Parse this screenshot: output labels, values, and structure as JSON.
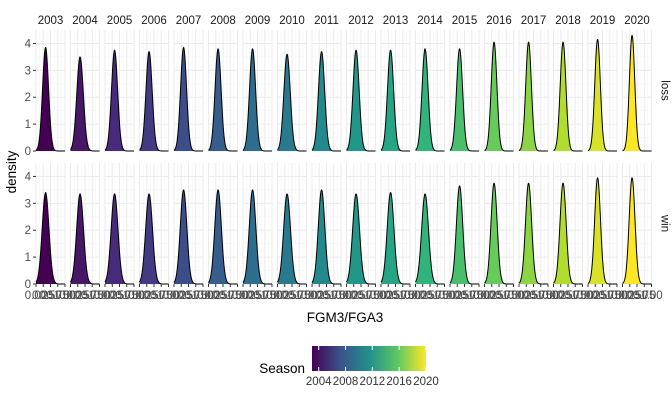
{
  "chart_data": {
    "type": "density",
    "facets": {
      "columns": [
        "2003",
        "2004",
        "2005",
        "2006",
        "2007",
        "2008",
        "2009",
        "2010",
        "2011",
        "2012",
        "2013",
        "2014",
        "2015",
        "2016",
        "2017",
        "2018",
        "2019",
        "2020"
      ],
      "rows": [
        "loss",
        "win"
      ]
    },
    "xlabel": "FGM3/FGA3",
    "ylabel": "density",
    "xlim": [
      0,
      1
    ],
    "ylim": [
      0,
      4.5
    ],
    "x_ticks": [
      0,
      0.25,
      0.5,
      0.75,
      1
    ],
    "x_tick_labels": [
      "0.00",
      "0.25",
      "0.50",
      "0.75",
      "1.00"
    ],
    "y_ticks": [
      0,
      1,
      2,
      3,
      4
    ],
    "y_tick_labels": [
      "0",
      "1",
      "2",
      "3",
      "4"
    ],
    "peak_x": 0.33,
    "peak_density": {
      "loss": [
        3.85,
        3.5,
        3.75,
        3.7,
        3.85,
        3.8,
        3.8,
        3.6,
        3.7,
        3.75,
        3.75,
        3.8,
        3.8,
        4.05,
        4.05,
        4.05,
        4.15,
        4.3
      ],
      "win": [
        3.4,
        3.35,
        3.35,
        3.35,
        3.5,
        3.5,
        3.5,
        3.35,
        3.5,
        3.35,
        3.4,
        3.35,
        3.65,
        3.75,
        3.75,
        3.75,
        3.95,
        3.95
      ]
    },
    "fill_scale": "viridis",
    "grid": true,
    "legend": {
      "title": "Season",
      "position": "bottom",
      "range": [
        2003,
        2020
      ],
      "ticks": [
        2004,
        2008,
        2012,
        2016,
        2020
      ],
      "tick_labels": [
        "2004",
        "2008",
        "2012",
        "2016",
        "2020"
      ]
    }
  },
  "colors": {
    "panel_bg": "#ffffff",
    "grid_major": "#ebebeb",
    "grid_minor": "#f5f5f5",
    "outline": "#000000"
  }
}
